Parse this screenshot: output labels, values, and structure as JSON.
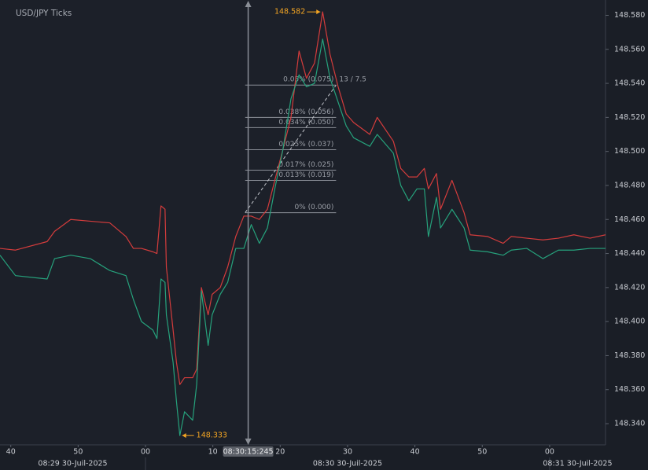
{
  "chart_data": {
    "type": "line",
    "title": "USD/JPY Ticks",
    "xlim": [
      38.4,
      128.3
    ],
    "xticks": [
      40,
      50,
      {
        "value": 60,
        "label": "00"
      },
      {
        "value": 70,
        "label": "10"
      },
      {
        "value": 80,
        "label": "20"
      },
      {
        "value": 90,
        "label": "30"
      },
      {
        "value": 100,
        "label": "40"
      },
      {
        "value": 110,
        "label": "50"
      },
      {
        "value": 120,
        "label": "00"
      }
    ],
    "minute_labels": [
      "08:29 30-Juil-2025",
      "08:30 30-Juil-2025",
      "08:31 30-Juil-2025"
    ],
    "ylim": [
      148.328,
      148.589
    ],
    "yticks": [
      {
        "value": 148.34,
        "label": "148.340"
      },
      {
        "value": 148.36,
        "label": "148.360"
      },
      {
        "value": 148.38,
        "label": "148.380"
      },
      {
        "value": 148.4,
        "label": "148.400"
      },
      {
        "value": 148.42,
        "label": "148.420"
      },
      {
        "value": 148.44,
        "label": "148.440"
      },
      {
        "value": 148.46,
        "label": "148.460"
      },
      {
        "value": 148.48,
        "label": "148.480"
      },
      {
        "value": 148.5,
        "label": "148.500"
      },
      {
        "value": 148.52,
        "label": "148.520"
      },
      {
        "value": 148.54,
        "label": "148.540"
      },
      {
        "value": 148.56,
        "label": "148.560"
      },
      {
        "value": 148.58,
        "label": "148.580"
      }
    ],
    "grid": false,
    "x": [
      38.4,
      40.7,
      45.4,
      46.5,
      48.9,
      51.8,
      54.7,
      57.1,
      58.2,
      59.4,
      61.1,
      61.7,
      62.3,
      62.9,
      63.1,
      64.1,
      64.6,
      65.1,
      65.8,
      67.0,
      67.6,
      68.3,
      69.3,
      69.9,
      71.1,
      72.2,
      73.4,
      74.6,
      75.7,
      76.9,
      78.1,
      79.2,
      80.4,
      81.6,
      82.8,
      83.9,
      85.1,
      86.3,
      87.4,
      88.6,
      89.8,
      90.9,
      93.3,
      94.4,
      96.8,
      97.9,
      99.1,
      100.3,
      101.4,
      102.0,
      103.2,
      103.8,
      105.5,
      107.3,
      108.2,
      110.8,
      113.1,
      114.3,
      116.6,
      119.0,
      121.3,
      123.6,
      126.0,
      128.3
    ],
    "series": [
      {
        "color": "#d43c3c",
        "values": [
          148.443,
          148.442,
          148.447,
          148.453,
          148.46,
          148.459,
          148.458,
          148.45,
          148.443,
          148.443,
          148.441,
          148.44,
          148.468,
          148.466,
          148.432,
          148.395,
          148.376,
          148.363,
          148.367,
          148.367,
          148.372,
          148.42,
          148.404,
          148.416,
          148.42,
          148.432,
          148.45,
          148.462,
          148.462,
          148.46,
          148.466,
          148.483,
          148.501,
          148.52,
          148.559,
          148.543,
          148.552,
          148.582,
          148.557,
          148.538,
          148.522,
          148.517,
          148.51,
          148.52,
          148.506,
          148.49,
          148.485,
          148.485,
          148.49,
          148.478,
          148.487,
          148.466,
          148.483,
          148.464,
          148.451,
          148.45,
          148.446,
          148.45,
          148.449,
          148.448,
          148.449,
          148.451,
          148.449,
          148.451
        ]
      },
      {
        "color": "#26a27c",
        "values": [
          148.439,
          148.427,
          148.425,
          148.437,
          148.439,
          148.437,
          148.43,
          148.427,
          148.413,
          148.4,
          148.395,
          148.39,
          148.425,
          148.423,
          148.404,
          148.376,
          148.353,
          148.333,
          148.347,
          148.342,
          148.363,
          148.418,
          148.386,
          148.404,
          148.416,
          148.423,
          148.443,
          148.443,
          148.457,
          148.446,
          148.455,
          148.478,
          148.501,
          148.531,
          148.545,
          148.538,
          148.54,
          148.566,
          148.543,
          148.529,
          148.515,
          148.508,
          148.503,
          148.51,
          148.499,
          148.48,
          148.471,
          148.478,
          148.478,
          148.45,
          148.473,
          148.455,
          148.466,
          148.455,
          148.442,
          148.441,
          148.439,
          148.442,
          148.443,
          148.437,
          148.442,
          148.442,
          148.443,
          148.443
        ]
      }
    ],
    "high": {
      "x": 86.3,
      "value": 148.582
    },
    "low": {
      "x": 65.1,
      "value": 148.333
    },
    "marker_color": "#f5a623",
    "crosshair": {
      "x": 75.245,
      "label": "08:30:15:245"
    },
    "fib": {
      "x_start": 74.8,
      "x_end": 88.3,
      "ratio_label": "13 / 7.5",
      "levels": [
        {
          "label": "0.05% (0.075)",
          "value": 148.539
        },
        {
          "label": "0.038% (0.056)",
          "value": 148.52
        },
        {
          "label": "0.034% (0.050)",
          "value": 148.514
        },
        {
          "label": "0.025% (0.037)",
          "value": 148.501
        },
        {
          "label": "0.017% (0.025)",
          "value": 148.489
        },
        {
          "label": "0.013% (0.019)",
          "value": 148.483
        },
        {
          "label": "0% (0.000)",
          "value": 148.464
        }
      ]
    }
  }
}
